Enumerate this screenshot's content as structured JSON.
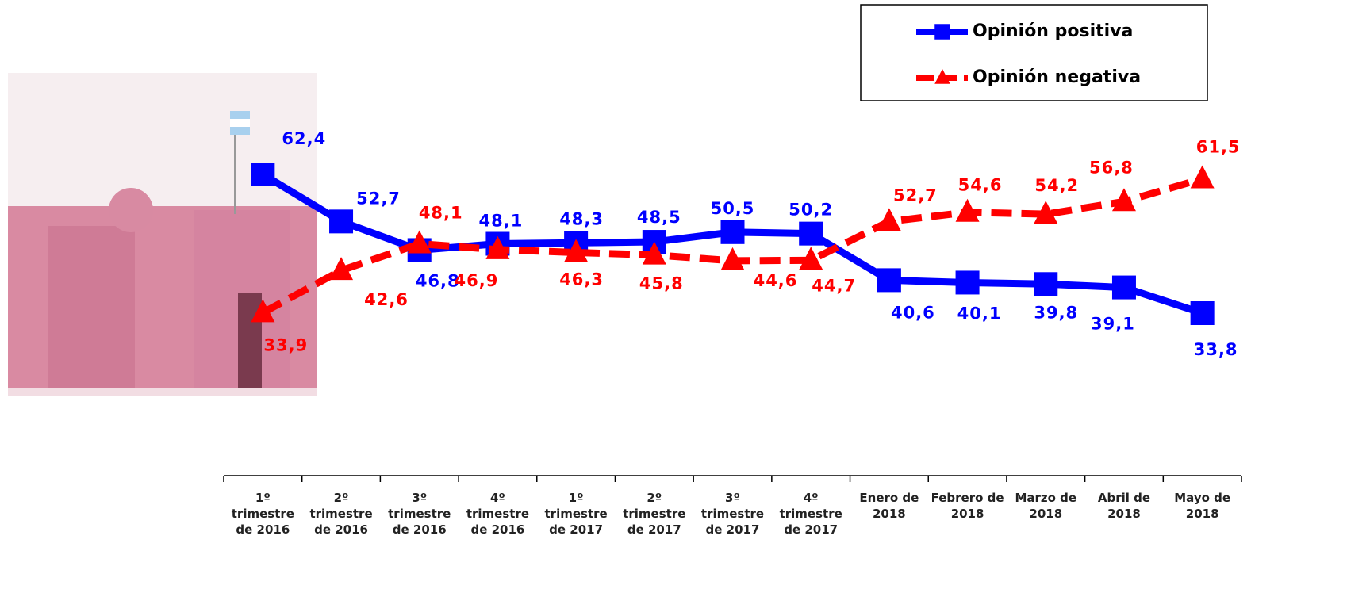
{
  "chart_data": {
    "type": "line",
    "categories": [
      "1º\ntrimestre\nde 2016",
      "2º\ntrimestre\nde 2016",
      "3º\ntrimestre\nde 2016",
      "4º\ntrimestre\nde 2016",
      "1º\ntrimestre\nde 2017",
      "2º\ntrimestre\nde 2017",
      "3º\ntrimestre\nde 2017",
      "4º\ntrimestre\nde 2017",
      "Enero de\n2018",
      "Febrero de\n2018",
      "Marzo de\n2018",
      "Abril de\n2018",
      "Mayo de\n2018"
    ],
    "series": [
      {
        "name": "Opinión positiva",
        "color": "#0000ff",
        "marker": "square",
        "dashed": false,
        "values": [
          62.4,
          52.7,
          46.8,
          48.1,
          48.3,
          48.5,
          50.5,
          50.2,
          40.6,
          40.1,
          39.8,
          39.1,
          33.8
        ],
        "value_labels": [
          "62,4",
          "52,7",
          "46,8",
          "48,1",
          "48,3",
          "48,5",
          "50,5",
          "50,2",
          "40,6",
          "40,1",
          "39,8",
          "39,1",
          "33,8"
        ]
      },
      {
        "name": "Opinión negativa",
        "color": "#ff0000",
        "marker": "triangle",
        "dashed": true,
        "values": [
          33.9,
          42.6,
          48.1,
          46.9,
          46.3,
          45.8,
          44.6,
          44.7,
          52.7,
          54.6,
          54.2,
          56.8,
          61.5
        ],
        "value_labels": [
          "33,9",
          "42,6",
          "48,1",
          "46,9",
          "46,3",
          "45,8",
          "44,6",
          "44,7",
          "52,7",
          "54,6",
          "54,2",
          "56,8",
          "61,5"
        ]
      }
    ],
    "legend": "top-right"
  }
}
